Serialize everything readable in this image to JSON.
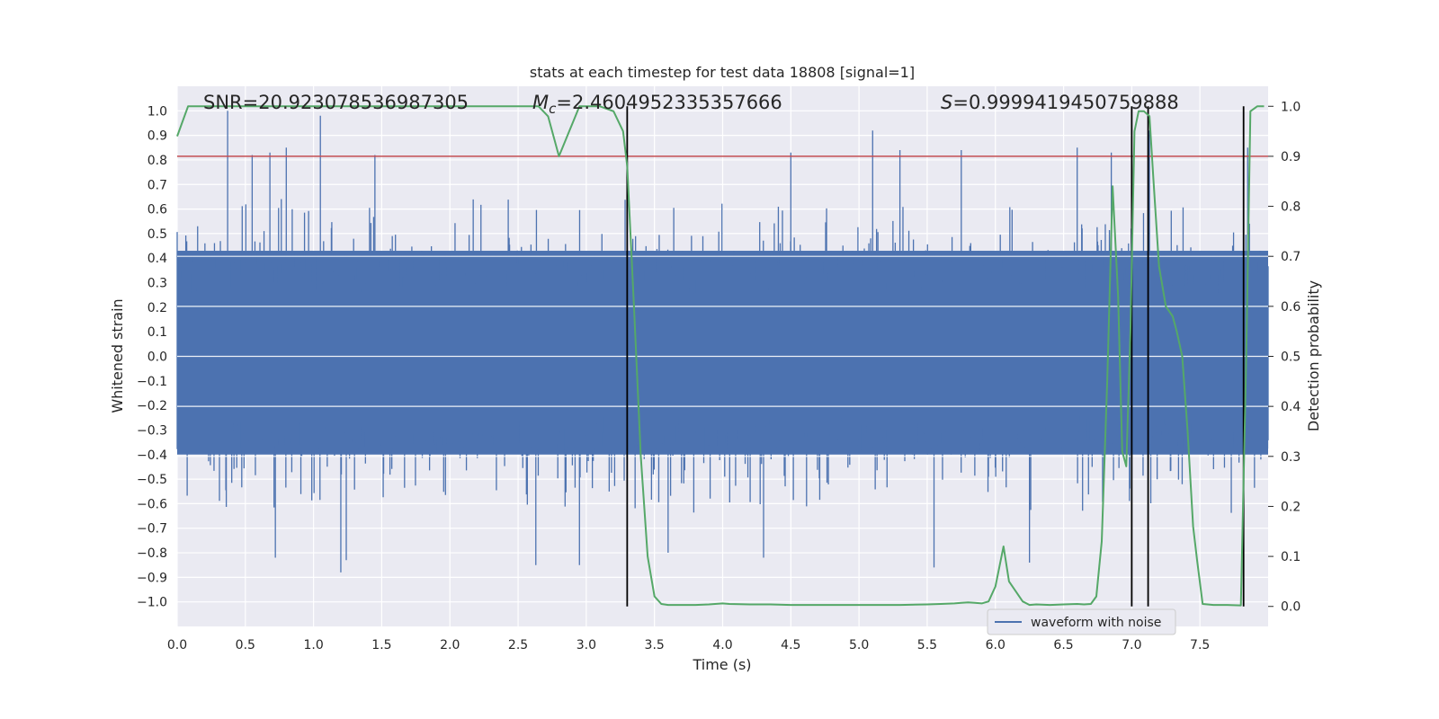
{
  "chart_data": {
    "type": "line",
    "title": "stats at each timestep for test data 18808 [signal=1]",
    "xlabel": "Time (s)",
    "ylabel": "Whitened strain",
    "y2label": "Detection probability",
    "xlim": [
      0.0,
      8.0
    ],
    "ylim": [
      -1.1,
      1.1
    ],
    "y2lim": [
      -0.04,
      1.04
    ],
    "xticks": [
      "0.0",
      "0.5",
      "1.0",
      "1.5",
      "2.0",
      "2.5",
      "3.0",
      "3.5",
      "4.0",
      "4.5",
      "5.0",
      "5.5",
      "6.0",
      "6.5",
      "7.0",
      "7.5"
    ],
    "yticks": [
      "1.0",
      "0.9",
      "0.8",
      "0.7",
      "0.6",
      "0.5",
      "0.4",
      "0.3",
      "0.2",
      "0.1",
      "0.0",
      "−0.1",
      "−0.2",
      "−0.3",
      "−0.4",
      "−0.5",
      "−0.6",
      "−0.7",
      "−0.8",
      "−0.9",
      "−1.0"
    ],
    "y2ticks": [
      "1.0",
      "0.9",
      "0.8",
      "0.7",
      "0.6",
      "0.5",
      "0.4",
      "0.3",
      "0.2",
      "0.1",
      "0.0"
    ],
    "annotations": {
      "snr": "SNR=20.923078536987305",
      "mc_symbol": "M",
      "mc_sub": "c",
      "mc_value": "=2.4604952335357666",
      "s_symbol": "S",
      "s_value": "=0.9999419450759888"
    },
    "threshold": {
      "y2": 0.9,
      "color": "#c44e52"
    },
    "vlines_x": [
      3.3,
      7.0,
      7.12,
      7.82
    ],
    "waveform": {
      "name": "waveform with noise",
      "color": "#4c72b0",
      "band_low": -0.4,
      "band_high": 0.43,
      "n_samples": 2400,
      "spike_peaks": [
        {
          "x": 0.37,
          "y": 1.0
        },
        {
          "x": 1.05,
          "y": 0.98
        },
        {
          "x": 0.55,
          "y": 0.82
        },
        {
          "x": 0.8,
          "y": 0.85
        },
        {
          "x": 0.68,
          "y": 0.83
        },
        {
          "x": 1.45,
          "y": 0.82
        },
        {
          "x": 3.3,
          "y": 0.92
        },
        {
          "x": 4.5,
          "y": 0.83
        },
        {
          "x": 5.1,
          "y": 0.92
        },
        {
          "x": 5.3,
          "y": 0.84
        },
        {
          "x": 6.6,
          "y": 0.85
        },
        {
          "x": 6.85,
          "y": 0.83
        },
        {
          "x": 7.13,
          "y": 0.92
        },
        {
          "x": 7.85,
          "y": 0.85
        },
        {
          "x": 5.75,
          "y": 0.84
        },
        {
          "x": 1.2,
          "y": -0.88
        },
        {
          "x": 1.24,
          "y": -0.83
        },
        {
          "x": 0.72,
          "y": -0.82
        },
        {
          "x": 2.63,
          "y": -0.85
        },
        {
          "x": 2.95,
          "y": -0.85
        },
        {
          "x": 3.6,
          "y": -0.8
        },
        {
          "x": 4.3,
          "y": -0.82
        },
        {
          "x": 5.55,
          "y": -0.86
        },
        {
          "x": 6.25,
          "y": -0.84
        },
        {
          "x": 7.82,
          "y": -1.0
        }
      ]
    },
    "probability": {
      "name": "detection probability",
      "color": "#55a868",
      "x": [
        0.0,
        0.08,
        0.3,
        0.6,
        1.0,
        1.5,
        2.0,
        2.5,
        2.65,
        2.72,
        2.8,
        2.95,
        3.1,
        3.2,
        3.27,
        3.3,
        3.35,
        3.4,
        3.45,
        3.5,
        3.55,
        3.6,
        3.7,
        3.8,
        3.9,
        4.0,
        4.05,
        4.2,
        4.35,
        4.5,
        4.7,
        5.0,
        5.3,
        5.5,
        5.6,
        5.7,
        5.75,
        5.8,
        5.85,
        5.9,
        5.95,
        6.0,
        6.06,
        6.1,
        6.2,
        6.25,
        6.3,
        6.4,
        6.5,
        6.6,
        6.65,
        6.7,
        6.74,
        6.78,
        6.82,
        6.86,
        6.9,
        6.93,
        6.96,
        6.99,
        7.02,
        7.05,
        7.09,
        7.13,
        7.16,
        7.2,
        7.25,
        7.3,
        7.33,
        7.37,
        7.41,
        7.45,
        7.48,
        7.52,
        7.6,
        7.7,
        7.8,
        7.84,
        7.87,
        7.92,
        7.97
      ],
      "y": [
        0.94,
        1.0,
        1.0,
        1.0,
        1.0,
        1.0,
        1.0,
        1.0,
        1.0,
        0.98,
        0.9,
        1.0,
        1.0,
        0.99,
        0.95,
        0.88,
        0.6,
        0.3,
        0.1,
        0.02,
        0.005,
        0.003,
        0.003,
        0.003,
        0.004,
        0.006,
        0.005,
        0.004,
        0.004,
        0.003,
        0.003,
        0.003,
        0.003,
        0.004,
        0.005,
        0.006,
        0.007,
        0.008,
        0.007,
        0.006,
        0.01,
        0.04,
        0.12,
        0.05,
        0.01,
        0.003,
        0.004,
        0.003,
        0.004,
        0.005,
        0.004,
        0.005,
        0.02,
        0.13,
        0.45,
        0.84,
        0.62,
        0.31,
        0.28,
        0.55,
        0.95,
        0.99,
        0.99,
        0.98,
        0.85,
        0.68,
        0.6,
        0.58,
        0.55,
        0.5,
        0.35,
        0.16,
        0.09,
        0.005,
        0.003,
        0.003,
        0.002,
        0.5,
        0.99,
        1.0,
        1.0
      ]
    },
    "legend": {
      "position": "lower-right",
      "entries": [
        "waveform with noise"
      ]
    },
    "grid": true
  }
}
